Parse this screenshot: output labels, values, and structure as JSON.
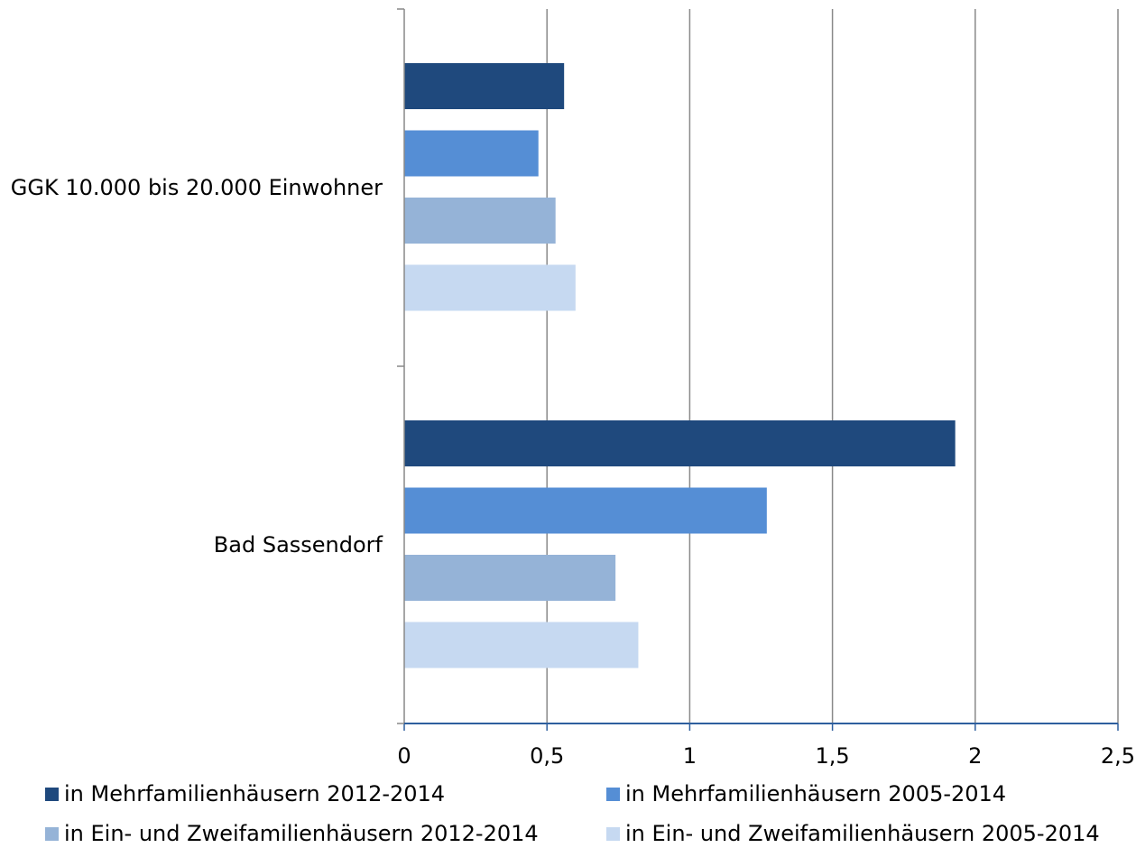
{
  "chart_data": {
    "type": "bar",
    "orientation": "horizontal",
    "title": "",
    "xlabel": "",
    "ylabel": "",
    "categories": [
      "GGK 10.000 bis 20.000 Einwohner",
      "Bad Sassendorf"
    ],
    "series": [
      {
        "name": "in Mehrfamilienhäusern 2012-2014",
        "color": "#1F497D",
        "values": [
          0.56,
          1.93
        ]
      },
      {
        "name": "in Mehrfamilienhäusern 2005-2014",
        "color": "#558ED5",
        "values": [
          0.47,
          1.27
        ]
      },
      {
        "name": "in Ein- und Zweifamilienhäusern 2012-2014",
        "color": "#95B3D7",
        "values": [
          0.53,
          0.74
        ]
      },
      {
        "name": "in Ein- und Zweifamilienhäusern 2005-2014",
        "color": "#C6D9F1",
        "values": [
          0.6,
          0.82
        ]
      }
    ],
    "xlim": [
      0,
      2.5
    ],
    "x_ticks": [
      "0",
      "0,5",
      "1",
      "1,5",
      "2",
      "2,5"
    ],
    "grid": "vertical",
    "legend_position": "bottom"
  },
  "colors": {
    "gridline": "#898989",
    "x_axis": "#2E5F9E",
    "y_axis": "#898989"
  }
}
